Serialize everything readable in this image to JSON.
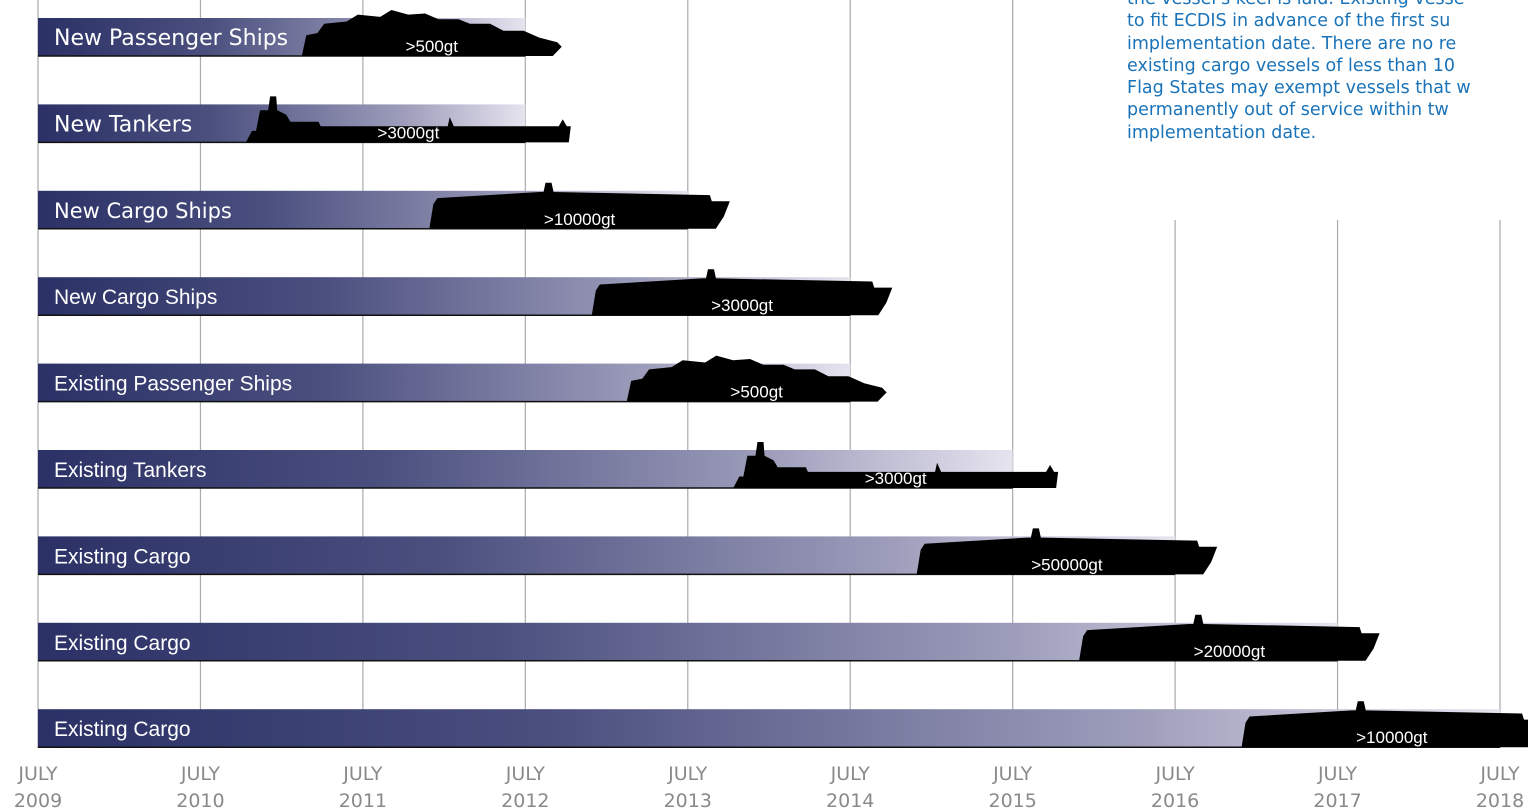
{
  "chart_data": {
    "type": "bar",
    "subtype": "horizontal-timeline",
    "x_ticks": [
      {
        "top": "JULY",
        "bottom": "2009"
      },
      {
        "top": "JULY",
        "bottom": "2010"
      },
      {
        "top": "JULY",
        "bottom": "2011"
      },
      {
        "top": "JULY",
        "bottom": "2012"
      },
      {
        "top": "JULY",
        "bottom": "2013"
      },
      {
        "top": "JULY",
        "bottom": "2014"
      },
      {
        "top": "JULY",
        "bottom": "2015"
      },
      {
        "top": "JULY",
        "bottom": "2016"
      },
      {
        "top": "JULY",
        "bottom": "2017"
      },
      {
        "top": "JULY",
        "bottom": "2018"
      }
    ],
    "xlim": [
      2009,
      2018
    ],
    "series": [
      {
        "category": "New Passenger Ships",
        "start": 2009,
        "end": 2012,
        "tonnage": ">500gt",
        "ship": "passenger"
      },
      {
        "category": "New Tankers",
        "start": 2009,
        "end": 2012,
        "tonnage": ">3000gt",
        "ship": "tanker"
      },
      {
        "category": "New Cargo Ships",
        "start": 2009,
        "end": 2013,
        "tonnage": ">10000gt",
        "ship": "cargo"
      },
      {
        "category": "New Cargo Ships",
        "start": 2009,
        "end": 2014,
        "tonnage": ">3000gt",
        "ship": "cargo"
      },
      {
        "category": "Existing Passenger Ships",
        "start": 2009,
        "end": 2014,
        "tonnage": ">500gt",
        "ship": "passenger"
      },
      {
        "category": "Existing Tankers",
        "start": 2009,
        "end": 2015,
        "tonnage": ">3000gt",
        "ship": "tanker"
      },
      {
        "category": "Existing Cargo",
        "start": 2009,
        "end": 2016,
        "tonnage": ">50000gt",
        "ship": "cargo"
      },
      {
        "category": "Existing Cargo",
        "start": 2009,
        "end": 2017,
        "tonnage": ">20000gt",
        "ship": "cargo"
      },
      {
        "category": "Existing Cargo",
        "start": 2009,
        "end": 2018,
        "tonnage": ">10000gt",
        "ship": "cargo"
      }
    ],
    "grid": "vertical",
    "colors": {
      "bar_dark": "#2b3166",
      "bar_light": "#e6e4ef",
      "grid": "#aaaaaa",
      "tick_text": "#8a8a8a",
      "note_text": "#1a73b8",
      "ship": "#000000"
    }
  },
  "note": {
    "lines": [
      "the vessel's keel is laid. Existing vesse",
      "to fit ECDIS in advance of the first su",
      "implementation date. There are no re",
      "existing cargo vessels of less than 10",
      "Flag States may exempt vessels that w",
      "permanently out of service within tw",
      "implementation date."
    ]
  }
}
